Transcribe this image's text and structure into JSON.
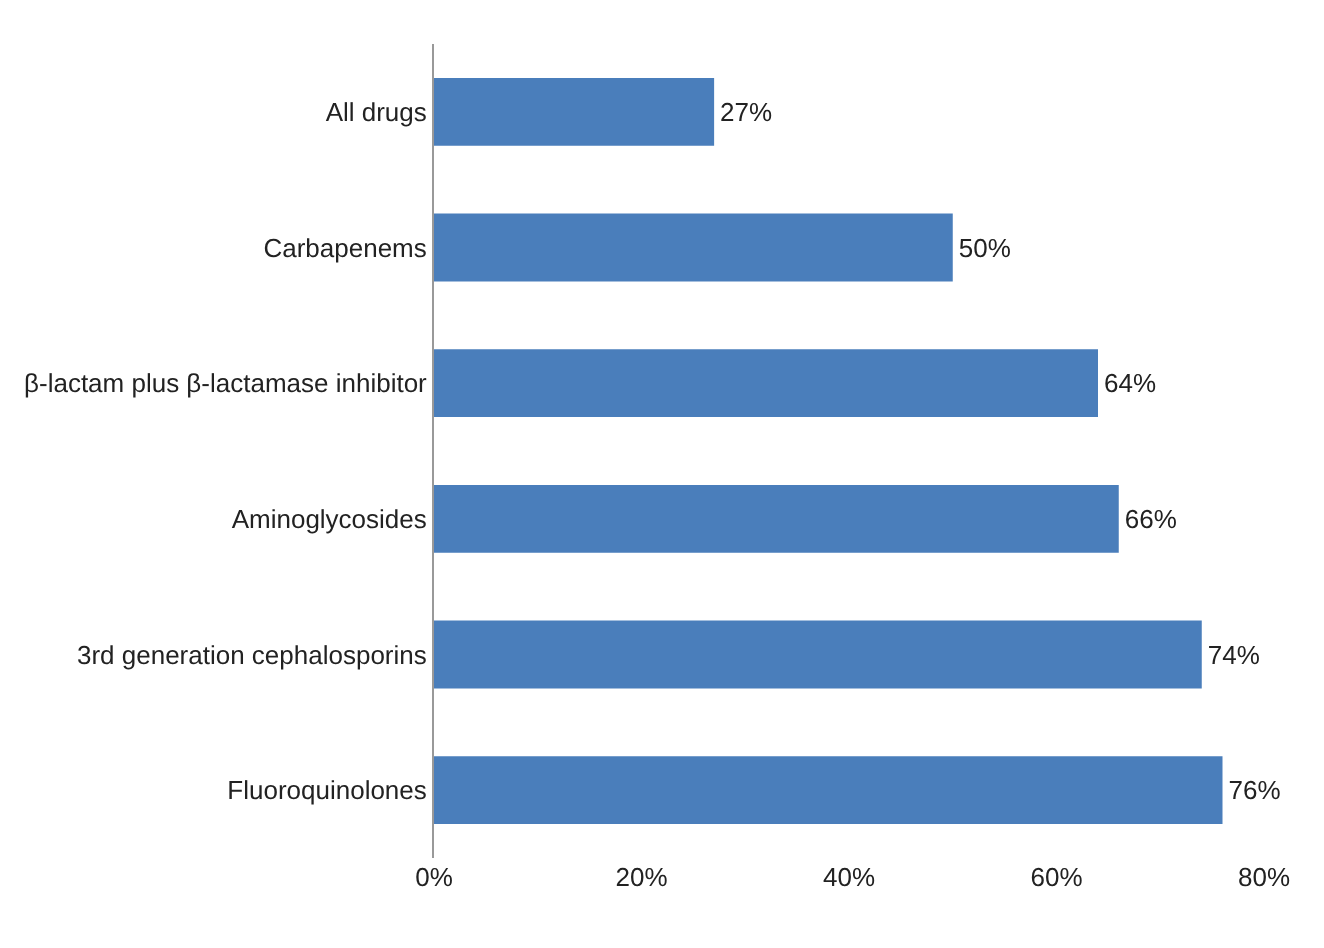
{
  "chart_data": {
    "type": "bar",
    "orientation": "horizontal",
    "categories": [
      "All drugs",
      "Carbapenems",
      "β-lactam plus β-lactamase inhibitor",
      "Aminoglycosides",
      "3rd generation cephalosporins",
      "Fluoroquinolones"
    ],
    "values": [
      27,
      50,
      64,
      66,
      74,
      76
    ],
    "value_labels": [
      "27%",
      "50%",
      "64%",
      "66%",
      "74%",
      "76%"
    ],
    "color": "#4a7ebb",
    "xlim": [
      0,
      80
    ],
    "xticks": [
      {
        "value": 0,
        "label": "0%"
      },
      {
        "value": 20,
        "label": "20%"
      },
      {
        "value": 40,
        "label": "40%"
      },
      {
        "value": 60,
        "label": "60%"
      },
      {
        "value": 80,
        "label": "80%"
      }
    ],
    "legend": false
  }
}
